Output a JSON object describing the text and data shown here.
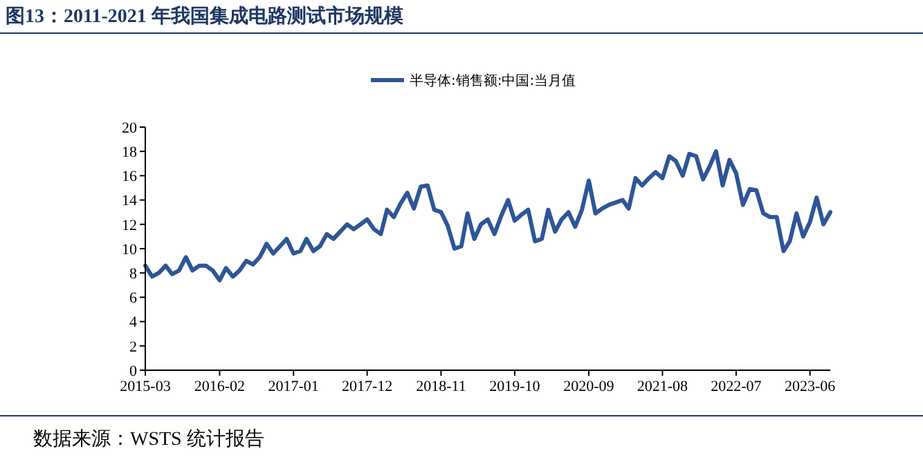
{
  "chart_data": {
    "type": "line",
    "title": "图13：2011-2021 年我国集成电路测试市场规模",
    "annotations": [
      "数据来源：WSTS 统计报告"
    ],
    "x": [
      "2015-03",
      "2015-04",
      "2015-05",
      "2015-06",
      "2015-07",
      "2015-08",
      "2015-09",
      "2015-10",
      "2015-11",
      "2015-12",
      "2016-01",
      "2016-02",
      "2016-03",
      "2016-04",
      "2016-05",
      "2016-06",
      "2016-07",
      "2016-08",
      "2016-09",
      "2016-10",
      "2016-11",
      "2016-12",
      "2017-01",
      "2017-02",
      "2017-03",
      "2017-04",
      "2017-05",
      "2017-06",
      "2017-07",
      "2017-08",
      "2017-09",
      "2017-10",
      "2017-11",
      "2017-12",
      "2018-01",
      "2018-02",
      "2018-03",
      "2018-04",
      "2018-05",
      "2018-06",
      "2018-07",
      "2018-08",
      "2018-09",
      "2018-10",
      "2018-11",
      "2018-12",
      "2019-01",
      "2019-02",
      "2019-03",
      "2019-04",
      "2019-05",
      "2019-06",
      "2019-07",
      "2019-08",
      "2019-09",
      "2019-10",
      "2019-11",
      "2019-12",
      "2020-01",
      "2020-02",
      "2020-03",
      "2020-04",
      "2020-05",
      "2020-06",
      "2020-07",
      "2020-08",
      "2020-09",
      "2020-10",
      "2020-11",
      "2020-12",
      "2021-01",
      "2021-02",
      "2021-03",
      "2021-04",
      "2021-05",
      "2021-06",
      "2021-07",
      "2021-08",
      "2021-09",
      "2021-10",
      "2021-11",
      "2021-12",
      "2022-01",
      "2022-02",
      "2022-03",
      "2022-04",
      "2022-05",
      "2022-06",
      "2022-07",
      "2022-08",
      "2022-09",
      "2022-10",
      "2022-11",
      "2022-12",
      "2023-01",
      "2023-02",
      "2023-03",
      "2023-04",
      "2023-05",
      "2023-06",
      "2023-07",
      "2023-08",
      "2023-09"
    ],
    "series": [
      {
        "name": "半导体:销售额:中国:当月值",
        "color": "#2e5597",
        "values": [
          8.6,
          7.7,
          8.0,
          8.6,
          7.9,
          8.2,
          9.3,
          8.2,
          8.6,
          8.6,
          8.2,
          7.4,
          8.4,
          7.7,
          8.2,
          9.0,
          8.7,
          9.3,
          10.4,
          9.6,
          10.2,
          10.8,
          9.6,
          9.8,
          10.8,
          9.8,
          10.2,
          11.2,
          10.8,
          11.4,
          12.0,
          11.6,
          12.0,
          12.4,
          11.6,
          11.2,
          13.2,
          12.6,
          13.7,
          14.6,
          13.3,
          15.1,
          15.2,
          13.2,
          13.0,
          11.9,
          10.0,
          10.2,
          12.9,
          10.8,
          12.0,
          12.4,
          11.2,
          12.7,
          14.0,
          12.3,
          12.8,
          13.2,
          10.6,
          10.8,
          13.2,
          11.4,
          12.4,
          13.0,
          11.8,
          13.2,
          15.6,
          12.9,
          13.3,
          13.6,
          13.8,
          14.0,
          13.3,
          15.8,
          15.2,
          15.8,
          16.3,
          15.8,
          17.6,
          17.2,
          16.0,
          17.8,
          17.6,
          15.7,
          16.7,
          18.0,
          15.2,
          17.3,
          16.2,
          13.6,
          14.9,
          14.8,
          12.9,
          12.6,
          12.6,
          9.8,
          10.6,
          12.9,
          11.0,
          12.2,
          14.2,
          12.0,
          13.0
        ]
      }
    ],
    "xlim": [
      "2015-03",
      "2023-09"
    ],
    "xticks": [
      "2015-03",
      "2016-02",
      "2017-01",
      "2017-12",
      "2018-11",
      "2019-10",
      "2020-09",
      "2021-08",
      "2022-07",
      "2023-06"
    ],
    "ylim": [
      0,
      20
    ],
    "yticks": [
      0,
      2,
      4,
      6,
      8,
      10,
      12,
      14,
      16,
      18,
      20
    ],
    "grid": false,
    "legend": "top",
    "line_style": "solid",
    "marker": "none"
  }
}
